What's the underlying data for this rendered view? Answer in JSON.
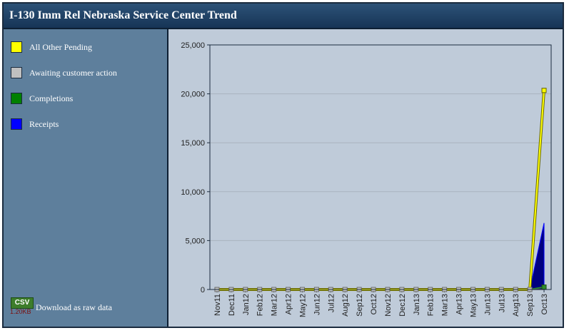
{
  "title": "I-130 Imm Rel Nebraska Service Center Trend",
  "legend": [
    {
      "label": "All Other Pending",
      "color": "#ffff00"
    },
    {
      "label": "Awaiting customer action",
      "color": "#c0c0c0"
    },
    {
      "label": "Completions",
      "color": "#008000"
    },
    {
      "label": "Receipts",
      "color": "#0000ff"
    }
  ],
  "download": {
    "badge": "CSV",
    "size": "1.20KB",
    "label": "Download as raw data"
  },
  "colors": {
    "pending_line": "#c8c800",
    "receipts_fill": "#000080",
    "completions": "#2e8b2e",
    "awaiting": "#808080"
  },
  "chart_data": {
    "type": "line",
    "categories": [
      "Nov11",
      "Dec11",
      "Jan12",
      "Feb12",
      "Mar12",
      "Apr12",
      "May12",
      "Jun12",
      "Jul12",
      "Aug12",
      "Sep12",
      "Oct12",
      "Nov12",
      "Dec12",
      "Jan13",
      "Feb13",
      "Mar13",
      "Apr13",
      "May13",
      "Jun13",
      "Jul13",
      "Aug13",
      "Sep13",
      "Oct13"
    ],
    "y_ticks": [
      "0",
      "5,000",
      "10,000",
      "15,000",
      "20,000",
      "25,000"
    ],
    "ylim": [
      0,
      25000
    ],
    "grid": true,
    "series": [
      {
        "name": "All Other Pending",
        "values": [
          0,
          0,
          0,
          0,
          0,
          0,
          0,
          0,
          0,
          0,
          0,
          0,
          0,
          0,
          0,
          0,
          0,
          0,
          0,
          0,
          0,
          0,
          0,
          20350
        ]
      },
      {
        "name": "Awaiting customer action",
        "values": [
          0,
          0,
          0,
          0,
          0,
          0,
          0,
          0,
          0,
          0,
          0,
          0,
          0,
          0,
          0,
          0,
          0,
          0,
          0,
          0,
          0,
          0,
          0,
          0
        ]
      },
      {
        "name": "Completions",
        "values": [
          0,
          0,
          0,
          0,
          0,
          0,
          0,
          0,
          0,
          0,
          0,
          0,
          0,
          0,
          0,
          0,
          0,
          0,
          0,
          0,
          0,
          0,
          0,
          250
        ]
      },
      {
        "name": "Receipts",
        "values": [
          0,
          0,
          0,
          0,
          0,
          0,
          0,
          0,
          0,
          0,
          0,
          0,
          0,
          0,
          0,
          0,
          0,
          0,
          0,
          0,
          0,
          0,
          0,
          6800
        ]
      }
    ]
  }
}
